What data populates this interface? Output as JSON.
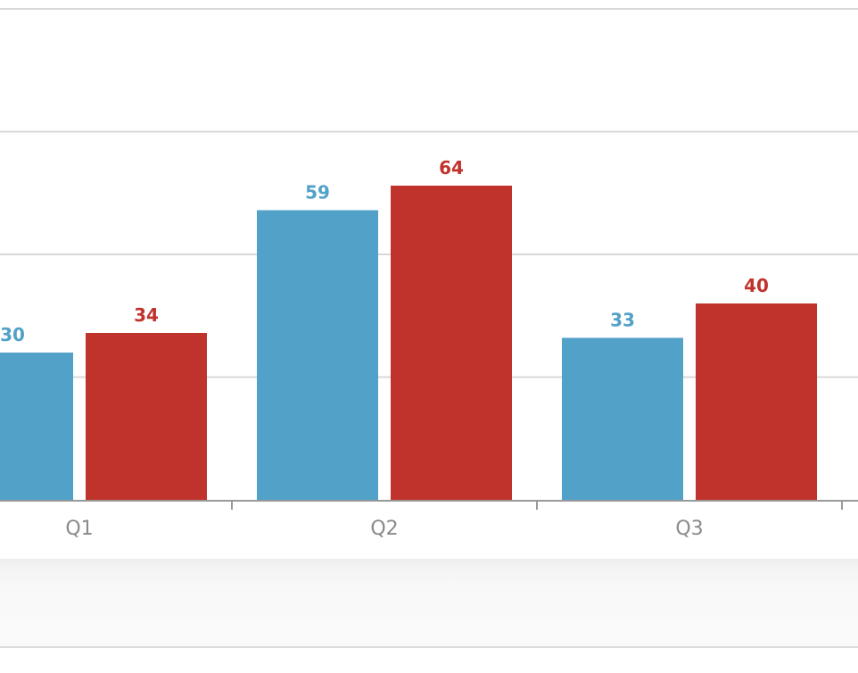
{
  "chart_data": {
    "type": "bar",
    "categories": [
      "Q1",
      "Q2",
      "Q3"
    ],
    "series": [
      {
        "values": [
          30,
          59,
          33
        ],
        "color": "#52a1c8"
      },
      {
        "values": [
          34,
          64,
          40
        ],
        "color": "#c0332d"
      }
    ],
    "ylim": [
      0,
      100
    ],
    "y_gridlines": [
      25,
      50,
      75,
      100
    ],
    "grid": true,
    "legend": "none",
    "data_labels": true
  }
}
